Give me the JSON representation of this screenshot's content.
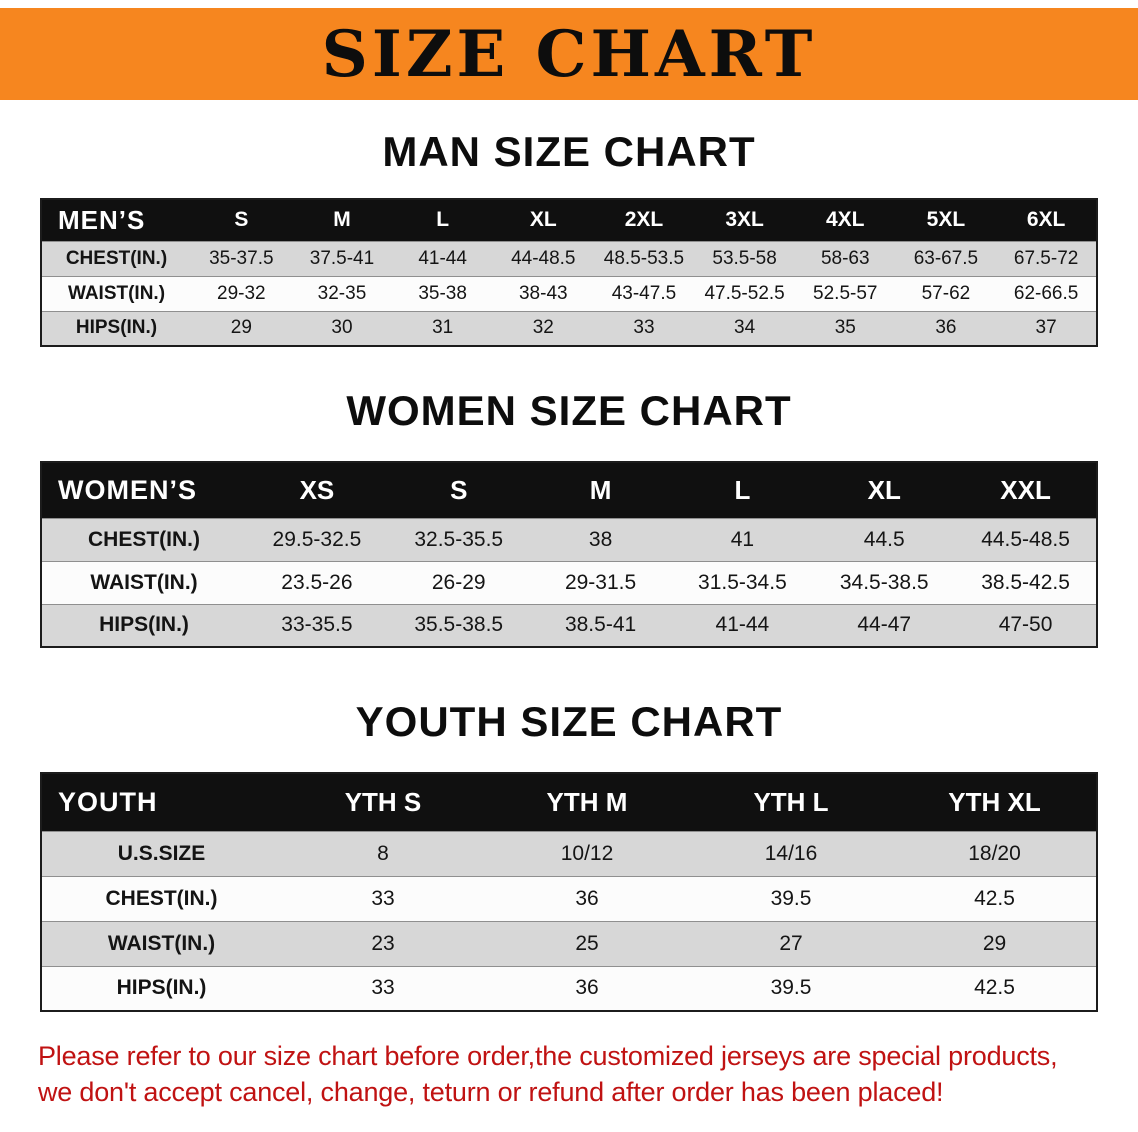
{
  "banner": {
    "title": "SIZE CHART"
  },
  "men": {
    "heading": "MAN SIZE CHART",
    "corner": "MEN’S",
    "cols": [
      "S",
      "M",
      "L",
      "XL",
      "2XL",
      "3XL",
      "4XL",
      "5XL",
      "6XL"
    ],
    "rows": [
      {
        "label": "CHEST(IN.)",
        "v": [
          "35-37.5",
          "37.5-41",
          "41-44",
          "44-48.5",
          "48.5-53.5",
          "53.5-58",
          "58-63",
          "63-67.5",
          "67.5-72"
        ]
      },
      {
        "label": "WAIST(IN.)",
        "v": [
          "29-32",
          "32-35",
          "35-38",
          "38-43",
          "43-47.5",
          "47.5-52.5",
          "52.5-57",
          "57-62",
          "62-66.5"
        ]
      },
      {
        "label": "HIPS(IN.)",
        "v": [
          "29",
          "30",
          "31",
          "32",
          "33",
          "34",
          "35",
          "36",
          "37"
        ]
      }
    ]
  },
  "women": {
    "heading": "WOMEN SIZE CHART",
    "corner": "WOMEN’S",
    "cols": [
      "XS",
      "S",
      "M",
      "L",
      "XL",
      "XXL"
    ],
    "rows": [
      {
        "label": "CHEST(IN.)",
        "v": [
          "29.5-32.5",
          "32.5-35.5",
          "38",
          "41",
          "44.5",
          "44.5-48.5"
        ]
      },
      {
        "label": "WAIST(IN.)",
        "v": [
          "23.5-26",
          "26-29",
          "29-31.5",
          "31.5-34.5",
          "34.5-38.5",
          "38.5-42.5"
        ]
      },
      {
        "label": "HIPS(IN.)",
        "v": [
          "33-35.5",
          "35.5-38.5",
          "38.5-41",
          "41-44",
          "44-47",
          "47-50"
        ]
      }
    ]
  },
  "youth": {
    "heading": "YOUTH SIZE CHART",
    "corner": "YOUTH",
    "cols": [
      "YTH S",
      "YTH M",
      "YTH L",
      "YTH XL"
    ],
    "rows": [
      {
        "label": "U.S.SIZE",
        "v": [
          "8",
          "10/12",
          "14/16",
          "18/20"
        ]
      },
      {
        "label": "CHEST(IN.)",
        "v": [
          "33",
          "36",
          "39.5",
          "42.5"
        ]
      },
      {
        "label": "WAIST(IN.)",
        "v": [
          "23",
          "25",
          "27",
          "29"
        ]
      },
      {
        "label": "HIPS(IN.)",
        "v": [
          "33",
          "36",
          "39.5",
          "42.5"
        ]
      }
    ]
  },
  "footer": {
    "line1": "Please refer to our size chart before order,the customized jerseys are special products,",
    "line2": "we don't accept cancel, change, teturn or refund after order has been placed!"
  },
  "colors": {
    "banner_bg": "#f6861f",
    "table_header_bg": "#101010",
    "row_alt_bg": "#d7d7d7",
    "footer_text": "#c01212"
  }
}
